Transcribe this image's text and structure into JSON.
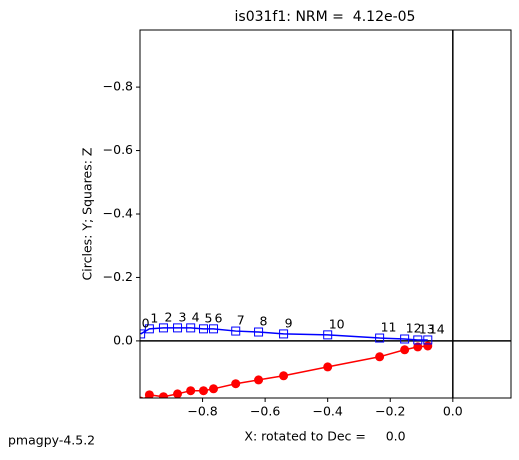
{
  "chart_data": {
    "type": "line",
    "title": "is031f1: NRM =  4.12e-05",
    "xlabel": "X: rotated to Dec =     0.0",
    "ylabel": "Circles: Y; Squares: Z",
    "x": [
      -0.998,
      -0.97,
      -0.925,
      -0.88,
      -0.838,
      -0.797,
      -0.765,
      -0.694,
      -0.621,
      -0.541,
      -0.4,
      -0.234,
      -0.154,
      -0.112,
      -0.08
    ],
    "series": [
      {
        "color": "#ff0000",
        "marker": "circle",
        "values": [
          0.19,
          0.17,
          0.176,
          0.167,
          0.157,
          0.157,
          0.151,
          0.135,
          0.123,
          0.11,
          0.082,
          0.05,
          0.028,
          0.019,
          0.016
        ]
      },
      {
        "color": "#0000ff",
        "marker": "square",
        "values": [
          -0.022,
          -0.038,
          -0.041,
          -0.041,
          -0.041,
          -0.038,
          -0.038,
          -0.031,
          -0.028,
          -0.022,
          -0.019,
          -0.009,
          -0.006,
          -0.003,
          -0.003
        ]
      }
    ],
    "point_labels": [
      "0",
      "1",
      "2",
      "3",
      "4",
      "5",
      "6",
      "7",
      "8",
      "9",
      "10",
      "11",
      "12",
      "13",
      "14"
    ],
    "xlim": [
      -1.0,
      0.186
    ],
    "ylim": [
      0.18,
      -0.98
    ],
    "xticks": [
      {
        "value": -0.8,
        "label": "−0.8"
      },
      {
        "value": -0.6,
        "label": "−0.6"
      },
      {
        "value": -0.4,
        "label": "−0.4"
      },
      {
        "value": -0.2,
        "label": "−0.2"
      },
      {
        "value": 0,
        "label": "0.0"
      }
    ],
    "yticks": [
      {
        "value": -0.8,
        "label": "−0.8"
      },
      {
        "value": -0.6,
        "label": "−0.6"
      },
      {
        "value": -0.4,
        "label": "−0.4"
      },
      {
        "value": -0.2,
        "label": "−0.2"
      },
      {
        "value": 0,
        "label": "0.0"
      }
    ]
  },
  "footer": "pmagpy-4.5.2"
}
